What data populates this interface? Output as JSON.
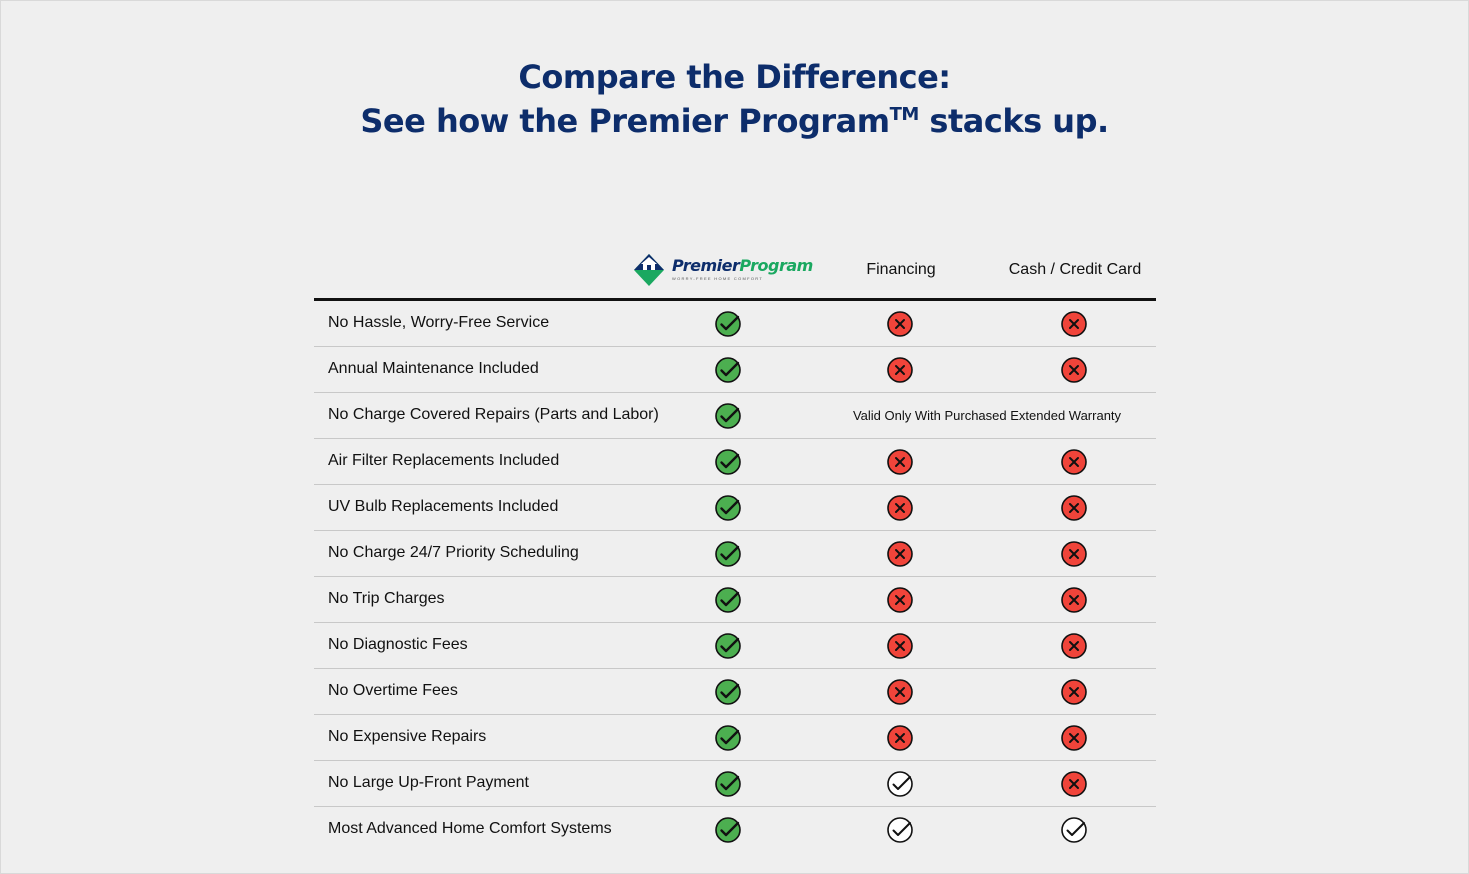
{
  "heading": {
    "line1": "Compare the Difference:",
    "line2_prefix": "See how the Premier Program",
    "line2_tm": "TM",
    "line2_suffix": " stacks up."
  },
  "logo": {
    "word_part1": "Premier",
    "word_part2": "Program",
    "tagline": "WORRY-FREE HOME COMFORT"
  },
  "columns": {
    "financing": "Financing",
    "cash": "Cash / Credit Card"
  },
  "colors": {
    "heading": "#0d2d6b",
    "check_green": "#4caf50",
    "x_red": "#f0443a"
  },
  "rows": [
    {
      "label": "No Hassle, Worry-Free Service",
      "premier": "check-green",
      "financing": "x-red",
      "cash": "x-red"
    },
    {
      "label": "Annual Maintenance Included",
      "premier": "check-green",
      "financing": "x-red",
      "cash": "x-red"
    },
    {
      "label": "No Charge Covered Repairs (Parts and Labor)",
      "premier": "check-green",
      "note": "Valid Only With Purchased Extended Warranty"
    },
    {
      "label": "Air Filter Replacements Included",
      "premier": "check-green",
      "financing": "x-red",
      "cash": "x-red"
    },
    {
      "label": "UV Bulb Replacements Included",
      "premier": "check-green",
      "financing": "x-red",
      "cash": "x-red"
    },
    {
      "label": "No Charge 24/7 Priority Scheduling",
      "premier": "check-green",
      "financing": "x-red",
      "cash": "x-red"
    },
    {
      "label": "No Trip Charges",
      "premier": "check-green",
      "financing": "x-red",
      "cash": "x-red"
    },
    {
      "label": "No Diagnostic Fees",
      "premier": "check-green",
      "financing": "x-red",
      "cash": "x-red"
    },
    {
      "label": "No Overtime Fees",
      "premier": "check-green",
      "financing": "x-red",
      "cash": "x-red"
    },
    {
      "label": "No Expensive Repairs",
      "premier": "check-green",
      "financing": "x-red",
      "cash": "x-red"
    },
    {
      "label": "No Large Up-Front Payment",
      "premier": "check-green",
      "financing": "check-outline",
      "cash": "x-red"
    },
    {
      "label": "Most Advanced Home Comfort Systems",
      "premier": "check-green",
      "financing": "check-outline",
      "cash": "check-outline"
    }
  ]
}
